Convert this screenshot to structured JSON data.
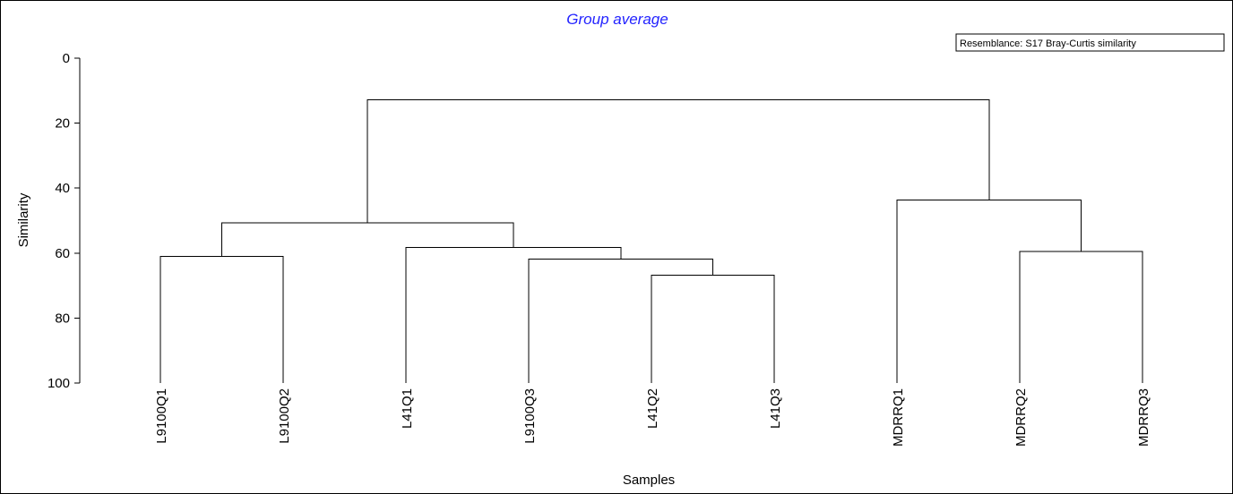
{
  "chart_data": {
    "type": "dendrogram",
    "title": "Group average",
    "title_color": "#2323ff",
    "legend_box": "Resemblance: S17 Bray-Curtis similarity",
    "legend_position": "top-right",
    "xlabel": "Samples",
    "ylabel": "Similarity",
    "ylim": [
      0,
      100
    ],
    "y_inverted": true,
    "yticks": [
      0,
      20,
      40,
      60,
      80,
      100
    ],
    "grid": false,
    "leaves": [
      "L9100Q1",
      "L9100Q2",
      "L41Q1",
      "L9100Q3",
      "L41Q2",
      "L41Q3",
      "MDRRQ1",
      "MDRRQ2",
      "MDRRQ3"
    ],
    "merges": [
      {
        "left": "L9100Q1",
        "right": "L9100Q2",
        "similarity": 61
      },
      {
        "left": "L41Q2",
        "right": "L41Q3",
        "similarity": 66.8
      },
      {
        "left": "L9100Q3",
        "right": "L41Q2+L41Q3",
        "similarity": 61.8
      },
      {
        "left": "L41Q1",
        "right": "L9100Q3+L41Q2+L41Q3",
        "similarity": 58.3
      },
      {
        "left": "L9100Q1+L9100Q2",
        "right": "L41Q1+L9100Q3+L41Q2+L41Q3",
        "similarity": 50.7
      },
      {
        "left": "MDRRQ2",
        "right": "MDRRQ3",
        "similarity": 59.5
      },
      {
        "left": "MDRRQ1",
        "right": "MDRRQ2+MDRRQ3",
        "similarity": 43.6
      },
      {
        "left": "L-group",
        "right": "MDRR-group",
        "similarity": 12.8
      }
    ]
  }
}
